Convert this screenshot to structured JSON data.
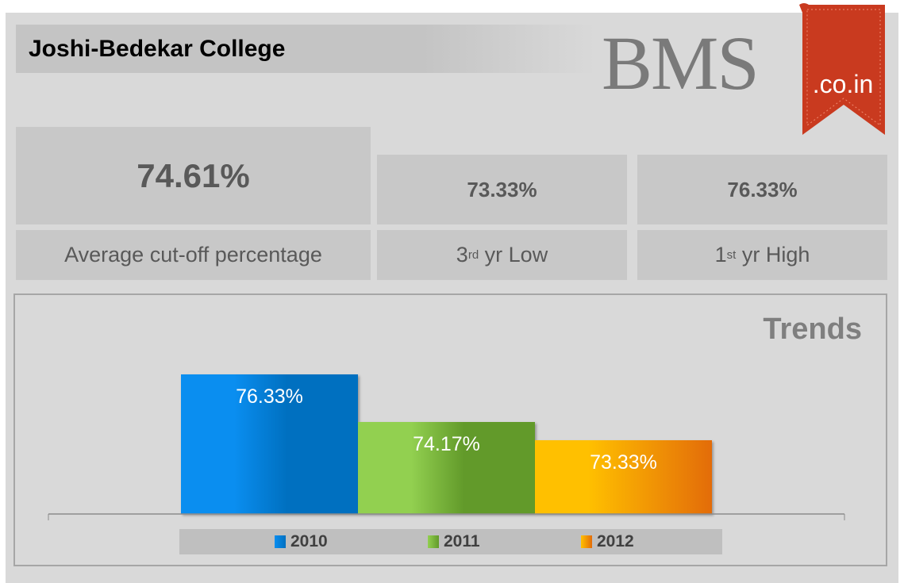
{
  "header": {
    "title": "Joshi-Bedekar College",
    "logo_text": "BMS",
    "logo_ribbon": ".co.in"
  },
  "stats": {
    "average": {
      "value": "74.61%",
      "label": "Average cut-off percentage"
    },
    "low": {
      "value": "73.33%",
      "label_pre": "3",
      "label_sup": "rd",
      "label_post": " yr Low"
    },
    "high": {
      "value": "76.33%",
      "label_pre": "1",
      "label_sup": "st",
      "label_post": " yr High"
    }
  },
  "chart_data": {
    "type": "bar",
    "title": "Trends",
    "categories": [
      "2010",
      "2011",
      "2012"
    ],
    "values": [
      76.33,
      74.17,
      73.33
    ],
    "data_labels": [
      "76.33%",
      "74.17%",
      "73.33%"
    ],
    "colors": [
      [
        "#0a8ef0",
        "#0070c0"
      ],
      [
        "#92d050",
        "#629a2a"
      ],
      [
        "#ffc000",
        "#e36c09"
      ]
    ],
    "legend": [
      "2010",
      "2011",
      "2012"
    ],
    "legend_position": "bottom",
    "ylim": [
      70,
      78
    ],
    "grid": false
  }
}
